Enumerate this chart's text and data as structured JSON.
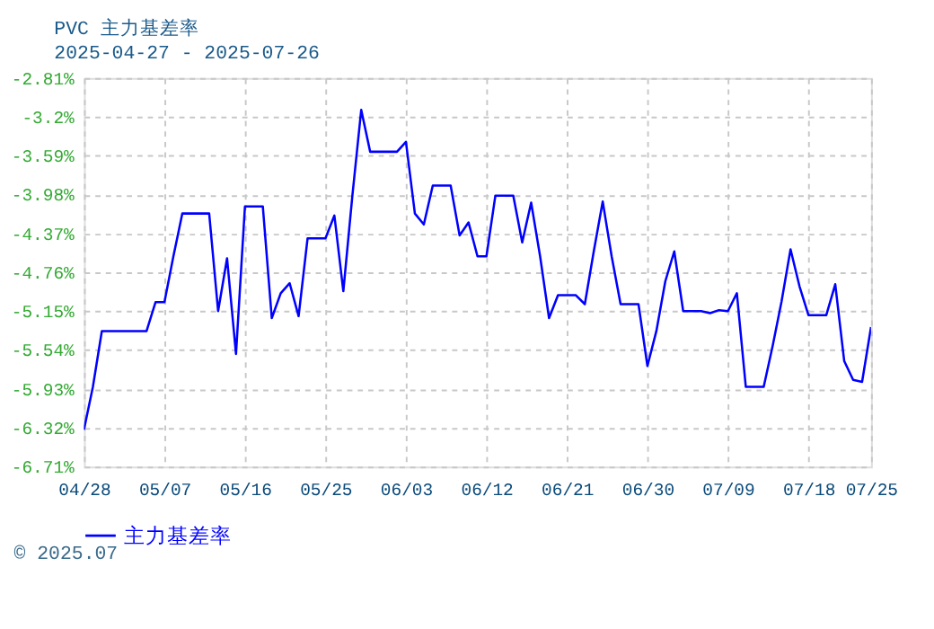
{
  "chart_data": {
    "type": "line",
    "title": "PVC 主力基差率",
    "subtitle": "2025-04-27 - 2025-07-26",
    "x": [
      "2025-04-28",
      "2025-04-29",
      "2025-04-30",
      "2025-05-01",
      "2025-05-02",
      "2025-05-03",
      "2025-05-04",
      "2025-05-05",
      "2025-05-06",
      "2025-05-07",
      "2025-05-08",
      "2025-05-09",
      "2025-05-10",
      "2025-05-11",
      "2025-05-12",
      "2025-05-13",
      "2025-05-14",
      "2025-05-15",
      "2025-05-16",
      "2025-05-17",
      "2025-05-18",
      "2025-05-19",
      "2025-05-20",
      "2025-05-21",
      "2025-05-22",
      "2025-05-23",
      "2025-05-24",
      "2025-05-25",
      "2025-05-26",
      "2025-05-27",
      "2025-05-28",
      "2025-05-29",
      "2025-05-30",
      "2025-05-31",
      "2025-06-01",
      "2025-06-02",
      "2025-06-03",
      "2025-06-04",
      "2025-06-05",
      "2025-06-06",
      "2025-06-07",
      "2025-06-08",
      "2025-06-09",
      "2025-06-10",
      "2025-06-11",
      "2025-06-12",
      "2025-06-13",
      "2025-06-14",
      "2025-06-15",
      "2025-06-16",
      "2025-06-17",
      "2025-06-18",
      "2025-06-19",
      "2025-06-20",
      "2025-06-21",
      "2025-06-22",
      "2025-06-23",
      "2025-06-24",
      "2025-06-25",
      "2025-06-26",
      "2025-06-27",
      "2025-06-28",
      "2025-06-29",
      "2025-06-30",
      "2025-07-01",
      "2025-07-02",
      "2025-07-03",
      "2025-07-04",
      "2025-07-05",
      "2025-07-06",
      "2025-07-07",
      "2025-07-08",
      "2025-07-09",
      "2025-07-10",
      "2025-07-11",
      "2025-07-12",
      "2025-07-13",
      "2025-07-14",
      "2025-07-15",
      "2025-07-16",
      "2025-07-17",
      "2025-07-18",
      "2025-07-19",
      "2025-07-20",
      "2025-07-21",
      "2025-07-22",
      "2025-07-23",
      "2025-07-24",
      "2025-07-25"
    ],
    "series": [
      {
        "name": "主力基差率",
        "color": "#0000ff",
        "values": [
          -6.34,
          -5.91,
          -5.35,
          -5.35,
          -5.35,
          -5.35,
          -5.35,
          -5.35,
          -5.06,
          -5.06,
          -4.6,
          -4.17,
          -4.17,
          -4.17,
          -4.17,
          -5.15,
          -4.62,
          -5.58,
          -4.1,
          -4.1,
          -4.1,
          -5.22,
          -4.97,
          -4.87,
          -5.2,
          -4.42,
          -4.42,
          -4.42,
          -4.19,
          -4.95,
          -4.0,
          -3.13,
          -3.55,
          -3.55,
          -3.55,
          -3.55,
          -3.45,
          -4.17,
          -4.28,
          -3.89,
          -3.89,
          -3.89,
          -4.39,
          -4.26,
          -4.6,
          -4.6,
          -3.99,
          -3.99,
          -3.99,
          -4.46,
          -4.06,
          -4.6,
          -5.22,
          -4.99,
          -4.99,
          -4.99,
          -5.08,
          -4.55,
          -4.05,
          -4.6,
          -5.08,
          -5.08,
          -5.08,
          -5.7,
          -5.35,
          -4.85,
          -4.55,
          -5.15,
          -5.15,
          -5.15,
          -5.17,
          -5.14,
          -5.15,
          -4.97,
          -5.91,
          -5.91,
          -5.91,
          -5.5,
          -5.05,
          -4.53,
          -4.9,
          -5.19,
          -5.19,
          -5.19,
          -4.88,
          -5.65,
          -5.84,
          -5.86,
          -5.31
        ]
      }
    ],
    "xlim": [
      "2025-04-28",
      "2025-07-25"
    ],
    "xticks": [
      {
        "value": "2025-04-28",
        "label": "04/28"
      },
      {
        "value": "2025-05-07",
        "label": "05/07"
      },
      {
        "value": "2025-05-16",
        "label": "05/16"
      },
      {
        "value": "2025-05-25",
        "label": "05/25"
      },
      {
        "value": "2025-06-03",
        "label": "06/03"
      },
      {
        "value": "2025-06-12",
        "label": "06/12"
      },
      {
        "value": "2025-06-21",
        "label": "06/21"
      },
      {
        "value": "2025-06-30",
        "label": "06/30"
      },
      {
        "value": "2025-07-09",
        "label": "07/09"
      },
      {
        "value": "2025-07-18",
        "label": "07/18"
      },
      {
        "value": "2025-07-25",
        "label": "07/25"
      }
    ],
    "ylim": [
      -6.71,
      -2.81
    ],
    "yticks": [
      {
        "value": -6.71,
        "label": "-6.71%"
      },
      {
        "value": -6.32,
        "label": "-6.32%"
      },
      {
        "value": -5.93,
        "label": "-5.93%"
      },
      {
        "value": -5.54,
        "label": "-5.54%"
      },
      {
        "value": -5.15,
        "label": "-5.15%"
      },
      {
        "value": -4.76,
        "label": "-4.76%"
      },
      {
        "value": -4.37,
        "label": "-4.37%"
      },
      {
        "value": -3.98,
        "label": "-3.98%"
      },
      {
        "value": -3.59,
        "label": "-3.59%"
      },
      {
        "value": -3.2,
        "label": "-3.2%"
      },
      {
        "value": -2.81,
        "label": "-2.81%"
      }
    ],
    "grid": true,
    "legend": "bottom",
    "marker": "none",
    "line_style": "solid",
    "annotations": [
      "© 2025.07"
    ]
  }
}
